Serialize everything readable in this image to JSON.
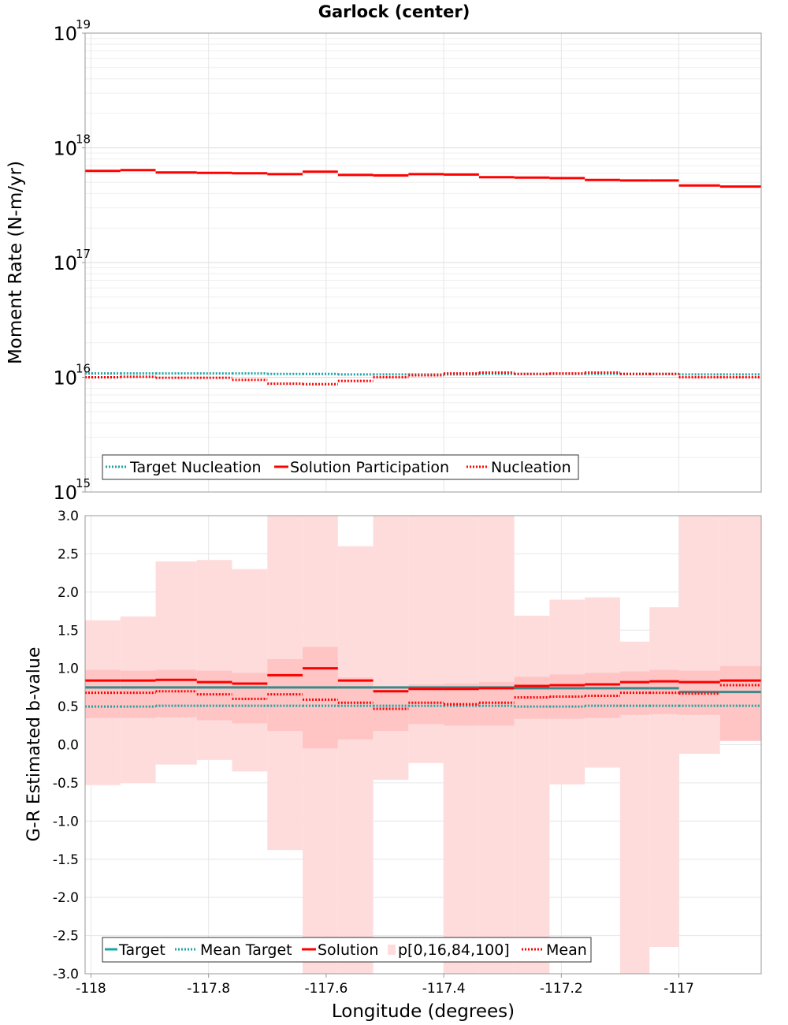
{
  "title": "Garlock (center)",
  "colors": {
    "target": "#1fa3a3",
    "solution": "#ff0000",
    "band_outer": "#ffdcdc",
    "band_inner": "#ffc4c4",
    "grid": "#e6e6e6"
  },
  "chart_data": [
    {
      "type": "line",
      "yscale": "log",
      "ylabel": "Moment Rate (N-m/yr)",
      "xlim": [
        -118.01,
        -116.86
      ],
      "ylim": [
        1000000000000000.0,
        1e+19
      ],
      "y_ticks": [
        {
          "base": "10",
          "exp": "15",
          "value": 1000000000000000.0
        },
        {
          "base": "10",
          "exp": "16",
          "value": 1e+16
        },
        {
          "base": "10",
          "exp": "17",
          "value": 1e+17
        },
        {
          "base": "10",
          "exp": "18",
          "value": 1e+18
        },
        {
          "base": "10",
          "exp": "19",
          "value": 1e+19
        }
      ],
      "grid": true,
      "legend_position": "bottom-left",
      "bin_edges": [
        -118.01,
        -117.95,
        -117.89,
        -117.82,
        -117.76,
        -117.7,
        -117.64,
        -117.58,
        -117.52,
        -117.46,
        -117.4,
        -117.34,
        -117.28,
        -117.22,
        -117.16,
        -117.1,
        -117.05,
        -117.0,
        -116.93,
        -116.86
      ],
      "series": [
        {
          "name": "Target Nucleation",
          "style": "dotted",
          "color": "#1fa3a3",
          "values": [
            1.08e+16,
            1.08e+16,
            1.08e+16,
            1.08e+16,
            1.08e+16,
            1.07e+16,
            1.07e+16,
            1.06e+16,
            1.06e+16,
            1.06e+16,
            1.06e+16,
            1.07e+16,
            1.07e+16,
            1.07e+16,
            1.07e+16,
            1.07e+16,
            1.07e+16,
            1.06e+16,
            1.06e+16
          ]
        },
        {
          "name": "Solution Participation",
          "style": "solid",
          "color": "#ff0000",
          "values": [
            6.3e+17,
            6.4e+17,
            6.1e+17,
            6.05e+17,
            6e+17,
            5.9e+17,
            6.2e+17,
            5.8e+17,
            5.75e+17,
            5.9e+17,
            5.85e+17,
            5.55e+17,
            5.5e+17,
            5.45e+17,
            5.25e+17,
            5.2e+17,
            5.2e+17,
            4.7e+17,
            4.6e+17
          ]
        },
        {
          "name": "Nucleation",
          "style": "dotted",
          "color": "#ff0000",
          "values": [
            1e+16,
            1.01e+16,
            9900000000000000.0,
            9900000000000000.0,
            9500000000000000.0,
            8800000000000000.0,
            8700000000000000.0,
            9300000000000000.0,
            1e+16,
            1.04e+16,
            1.08e+16,
            1.1e+16,
            1.07e+16,
            1.08e+16,
            1.1e+16,
            1.07e+16,
            1.07e+16,
            1e+16,
            1e+16
          ]
        }
      ]
    },
    {
      "type": "line",
      "ylabel": "G-R Estimated b-value",
      "xlabel": "Longitude (degrees)",
      "xlim": [
        -118.01,
        -116.86
      ],
      "ylim": [
        -3.0,
        3.0
      ],
      "y_ticks": [
        "-3.0",
        "-2.5",
        "-2.0",
        "-1.5",
        "-1.0",
        "-0.5",
        "0.0",
        "0.5",
        "1.0",
        "1.5",
        "2.0",
        "2.5",
        "3.0"
      ],
      "x_ticks": [
        "-118",
        "-117.8",
        "-117.6",
        "-117.4",
        "-117.2",
        "-117"
      ],
      "x_tick_values": [
        -118,
        -117.8,
        -117.6,
        -117.4,
        -117.2,
        -117
      ],
      "grid": true,
      "legend_position": "bottom-left",
      "bin_edges": [
        -118.01,
        -117.95,
        -117.89,
        -117.82,
        -117.76,
        -117.7,
        -117.64,
        -117.58,
        -117.52,
        -117.46,
        -117.4,
        -117.34,
        -117.28,
        -117.22,
        -117.16,
        -117.1,
        -117.05,
        -117.0,
        -116.93,
        -116.86
      ],
      "bands": {
        "name": "p[0,16,84,100]",
        "p0": [
          -0.53,
          -0.5,
          -0.26,
          -0.2,
          -0.35,
          -1.38,
          -3.0,
          -3.0,
          -0.46,
          -0.24,
          -3.0,
          -3.0,
          -3.0,
          -0.52,
          -0.3,
          -3.0,
          -2.65,
          -0.12,
          0.05
        ],
        "p16": [
          0.35,
          0.35,
          0.36,
          0.32,
          0.28,
          0.18,
          -0.05,
          0.07,
          0.18,
          0.27,
          0.25,
          0.25,
          0.34,
          0.34,
          0.35,
          0.39,
          0.4,
          0.39,
          0.05
        ],
        "p84": [
          0.98,
          0.97,
          0.98,
          0.97,
          0.94,
          1.12,
          1.28,
          0.88,
          0.73,
          0.79,
          0.8,
          0.82,
          0.89,
          0.92,
          0.94,
          0.96,
          0.98,
          0.97,
          1.03
        ],
        "p100": [
          1.63,
          1.68,
          2.4,
          2.42,
          2.3,
          3.0,
          3.0,
          2.6,
          3.0,
          3.0,
          3.0,
          3.0,
          1.69,
          1.9,
          1.93,
          1.35,
          1.8,
          3.0,
          3.0
        ]
      },
      "series": [
        {
          "name": "Target",
          "style": "solid",
          "color": "#3a8a8a",
          "values": [
            0.75,
            0.75,
            0.75,
            0.75,
            0.75,
            0.75,
            0.75,
            0.75,
            0.75,
            0.75,
            0.75,
            0.75,
            0.74,
            0.74,
            0.74,
            0.74,
            0.74,
            0.69,
            0.69
          ]
        },
        {
          "name": "Mean Target",
          "style": "dotted",
          "color": "#1fa3a3",
          "values": [
            0.5,
            0.5,
            0.51,
            0.51,
            0.51,
            0.51,
            0.51,
            0.51,
            0.51,
            0.51,
            0.51,
            0.51,
            0.5,
            0.5,
            0.51,
            0.51,
            0.51,
            0.51,
            0.51
          ]
        },
        {
          "name": "Solution",
          "style": "solid",
          "color": "#ff0000",
          "values": [
            0.84,
            0.84,
            0.85,
            0.82,
            0.8,
            0.91,
            1.0,
            0.84,
            0.7,
            0.73,
            0.73,
            0.74,
            0.77,
            0.78,
            0.79,
            0.82,
            0.83,
            0.82,
            0.84
          ]
        },
        {
          "name": "Mean",
          "style": "dotted",
          "color": "#ff0000",
          "values": [
            0.68,
            0.68,
            0.7,
            0.66,
            0.6,
            0.66,
            0.59,
            0.55,
            0.47,
            0.55,
            0.53,
            0.55,
            0.62,
            0.63,
            0.64,
            0.68,
            0.68,
            0.67,
            0.78
          ]
        }
      ]
    }
  ]
}
